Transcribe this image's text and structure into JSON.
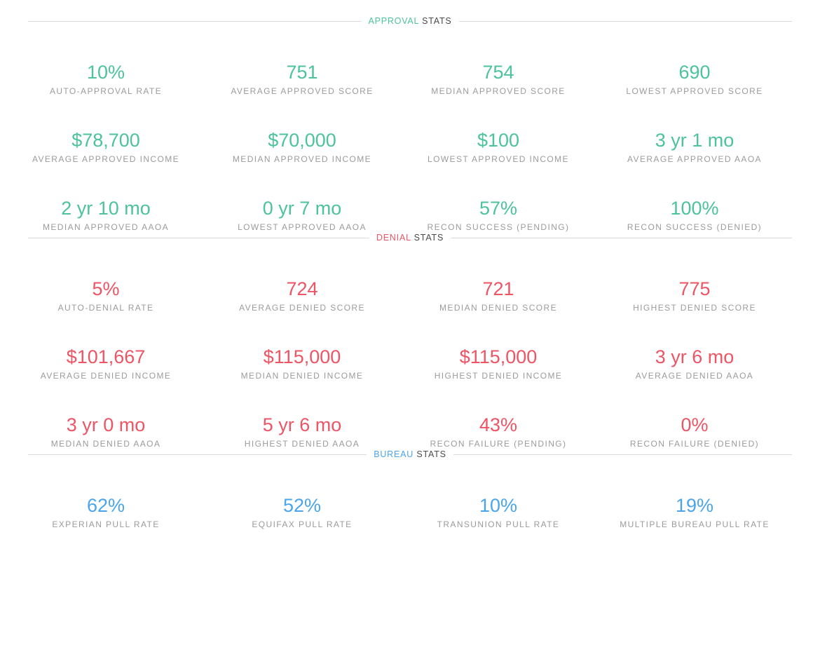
{
  "colors": {
    "approval_accent": "#4cc39b",
    "denial_accent": "#ed5565",
    "bureau_accent": "#4aa5ec",
    "label_gray": "#9b9b9b",
    "suffix_dark": "#4a4a4a",
    "divider": "#dadada"
  },
  "sections": [
    {
      "title": "APPROVAL",
      "suffix": "STATS",
      "accent": "#4cc39b",
      "stats": [
        {
          "value": "10%",
          "label": "AUTO-APPROVAL RATE"
        },
        {
          "value": "751",
          "label": "AVERAGE APPROVED SCORE"
        },
        {
          "value": "754",
          "label": "MEDIAN APPROVED SCORE"
        },
        {
          "value": "690",
          "label": "LOWEST APPROVED SCORE"
        },
        {
          "value": "$78,700",
          "label": "AVERAGE APPROVED INCOME"
        },
        {
          "value": "$70,000",
          "label": "MEDIAN APPROVED INCOME"
        },
        {
          "value": "$100",
          "label": "LOWEST APPROVED INCOME"
        },
        {
          "value": "3 yr 1 mo",
          "label": "AVERAGE APPROVED AAOA"
        },
        {
          "value": "2 yr 10 mo",
          "label": "MEDIAN APPROVED AAOA"
        },
        {
          "value": "0 yr 7 mo",
          "label": "LOWEST APPROVED AAOA"
        },
        {
          "value": "57%",
          "label": "RECON SUCCESS (PENDING)"
        },
        {
          "value": "100%",
          "label": "RECON SUCCESS (DENIED)"
        }
      ]
    },
    {
      "title": "DENIAL",
      "suffix": "STATS",
      "accent": "#ed5565",
      "stats": [
        {
          "value": "5%",
          "label": "AUTO-DENIAL RATE"
        },
        {
          "value": "724",
          "label": "AVERAGE DENIED SCORE"
        },
        {
          "value": "721",
          "label": "MEDIAN DENIED SCORE"
        },
        {
          "value": "775",
          "label": "HIGHEST DENIED SCORE"
        },
        {
          "value": "$101,667",
          "label": "AVERAGE DENIED INCOME"
        },
        {
          "value": "$115,000",
          "label": "MEDIAN DENIED INCOME"
        },
        {
          "value": "$115,000",
          "label": "HIGHEST DENIED INCOME"
        },
        {
          "value": "3 yr 6 mo",
          "label": "AVERAGE DENIED AAOA"
        },
        {
          "value": "3 yr 0 mo",
          "label": "MEDIAN DENIED AAOA"
        },
        {
          "value": "5 yr 6 mo",
          "label": "HIGHEST DENIED AAOA"
        },
        {
          "value": "43%",
          "label": "RECON FAILURE (PENDING)"
        },
        {
          "value": "0%",
          "label": "RECON FAILURE (DENIED)"
        }
      ]
    },
    {
      "title": "BUREAU",
      "suffix": "STATS",
      "accent": "#4aa5ec",
      "stats": [
        {
          "value": "62%",
          "label": "EXPERIAN PULL RATE"
        },
        {
          "value": "52%",
          "label": "EQUIFAX PULL RATE"
        },
        {
          "value": "10%",
          "label": "TRANSUNION PULL RATE"
        },
        {
          "value": "19%",
          "label": "MULTIPLE BUREAU PULL RATE"
        }
      ]
    }
  ]
}
